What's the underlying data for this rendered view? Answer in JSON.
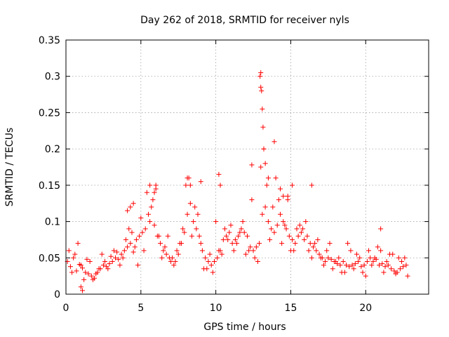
{
  "chart_data": {
    "type": "scatter",
    "title": "Day 262 of 2018, SRMTID for receiver nyls",
    "xlabel": "GPS time / hours",
    "ylabel": "SRMTID / TECUs",
    "xlim": [
      0,
      24.2
    ],
    "ylim": [
      0,
      0.35
    ],
    "xticks": [
      0,
      5,
      10,
      15,
      20
    ],
    "xtick_labels": [
      "0",
      "5",
      "10",
      "15",
      "20"
    ],
    "yticks": [
      0,
      0.05,
      0.1,
      0.15,
      0.2,
      0.25,
      0.3,
      0.35
    ],
    "ytick_labels": [
      "0",
      "0.05",
      "0.1",
      "0.15",
      "0.2",
      "0.25",
      "0.3",
      "0.35"
    ],
    "grid": true,
    "marker": "+",
    "color": "#ff0000",
    "series": [
      {
        "name": "SRMTID",
        "x": [
          0.1,
          0.3,
          0.5,
          0.7,
          0.9,
          1.1,
          1.3,
          1.5,
          1.7,
          1.9,
          2.1,
          2.3,
          2.5,
          2.7,
          2.9,
          3.1,
          3.3,
          3.5,
          3.7,
          3.9,
          4.1,
          4.3,
          4.5,
          4.7,
          4.9,
          5.1,
          5.3,
          5.5,
          5.7,
          5.9,
          6.1,
          6.3,
          6.5,
          6.7,
          6.9,
          7.1,
          7.3,
          7.5,
          7.7,
          7.9,
          8.1,
          8.3,
          8.5,
          8.7,
          8.9,
          9.1,
          9.3,
          9.5,
          9.7,
          9.9,
          10.1,
          10.3,
          10.5,
          10.7,
          10.9,
          11.1,
          11.3,
          11.5,
          11.7,
          11.9,
          12.1,
          12.3,
          12.5,
          12.7,
          12.9,
          13.1,
          13.3,
          13.5,
          13.7,
          13.9,
          14.1,
          14.3,
          14.5,
          14.7,
          14.9,
          15.1,
          15.3,
          15.5,
          15.7,
          15.9,
          16.1,
          16.3,
          16.5,
          16.7,
          16.9,
          17.1,
          17.3,
          17.5,
          17.7,
          17.9,
          18.1,
          18.3,
          18.5,
          18.7,
          18.9,
          19.1,
          19.3,
          19.5,
          19.7,
          19.9,
          20.1,
          20.3,
          20.5,
          20.7,
          20.9,
          21.1,
          21.3,
          21.5,
          21.7,
          21.9,
          22.1,
          22.3,
          22.5,
          22.7,
          0.2,
          0.6,
          1.0,
          1.4,
          1.8,
          2.2,
          2.6,
          3.0,
          3.4,
          3.8,
          4.2,
          4.6,
          5.0,
          5.4,
          5.8,
          6.2,
          6.6,
          7.0,
          7.4,
          7.8,
          8.2,
          8.6,
          9.0,
          9.4,
          9.8,
          10.2,
          10.6,
          11.0,
          11.4,
          11.8,
          12.2,
          12.6,
          13.0,
          13.4,
          13.8,
          14.2,
          14.6,
          15.0,
          15.4,
          15.8,
          16.2,
          16.6,
          17.0,
          17.4,
          17.8,
          18.2,
          18.6,
          19.0,
          19.4,
          19.8,
          20.2,
          20.6,
          21.0,
          21.4,
          21.8,
          22.2,
          22.6,
          0.4,
          0.8,
          1.2,
          1.6,
          2.0,
          2.4,
          2.8,
          3.2,
          3.6,
          4.0,
          4.4,
          4.8,
          5.2,
          5.6,
          6.0,
          6.4,
          6.8,
          7.2,
          7.6,
          8.0,
          8.4,
          8.8,
          9.2,
          9.6,
          10.0,
          10.4,
          10.8,
          11.2,
          11.6,
          12.0,
          12.4,
          12.8,
          13.2,
          13.6,
          14.0,
          14.4,
          14.8,
          15.2,
          15.6,
          16.0,
          16.4,
          16.8,
          17.2,
          17.6,
          18.0,
          18.4,
          18.8,
          19.2,
          19.6,
          20.0,
          20.4,
          20.8,
          21.2,
          21.6,
          22.0,
          22.4,
          22.8,
          12.95,
          13.0,
          13.0,
          13.05,
          13.1,
          13.15,
          13.2,
          13.3,
          13.5,
          13.9,
          14.3,
          12.4,
          8.1,
          8.3,
          9.0,
          10.2,
          10.3,
          5.6,
          5.9,
          6.0,
          4.5,
          16.4,
          21.0,
          4.1,
          4.3,
          1.0,
          1.1,
          15.1,
          14.8,
          14.5
        ],
        "y": [
          0.045,
          0.038,
          0.05,
          0.032,
          0.041,
          0.036,
          0.03,
          0.028,
          0.025,
          0.022,
          0.03,
          0.035,
          0.04,
          0.038,
          0.042,
          0.045,
          0.05,
          0.048,
          0.055,
          0.06,
          0.065,
          0.07,
          0.058,
          0.075,
          0.08,
          0.085,
          0.09,
          0.11,
          0.12,
          0.095,
          0.08,
          0.07,
          0.06,
          0.055,
          0.05,
          0.05,
          0.045,
          0.055,
          0.07,
          0.085,
          0.11,
          0.125,
          0.1,
          0.09,
          0.08,
          0.06,
          0.05,
          0.045,
          0.04,
          0.045,
          0.05,
          0.06,
          0.075,
          0.08,
          0.085,
          0.07,
          0.075,
          0.08,
          0.09,
          0.085,
          0.08,
          0.065,
          0.06,
          0.065,
          0.07,
          0.11,
          0.12,
          0.1,
          0.09,
          0.085,
          0.095,
          0.11,
          0.1,
          0.09,
          0.08,
          0.075,
          0.07,
          0.08,
          0.085,
          0.075,
          0.08,
          0.07,
          0.065,
          0.06,
          0.055,
          0.05,
          0.045,
          0.05,
          0.048,
          0.045,
          0.042,
          0.04,
          0.045,
          0.04,
          0.038,
          0.04,
          0.042,
          0.045,
          0.038,
          0.04,
          0.045,
          0.05,
          0.045,
          0.048,
          0.04,
          0.042,
          0.038,
          0.04,
          0.035,
          0.032,
          0.03,
          0.035,
          0.038,
          0.04,
          0.06,
          0.055,
          0.04,
          0.048,
          0.02,
          0.035,
          0.045,
          0.052,
          0.058,
          0.05,
          0.09,
          0.065,
          0.105,
          0.14,
          0.13,
          0.08,
          0.065,
          0.045,
          0.06,
          0.09,
          0.16,
          0.12,
          0.07,
          0.035,
          0.03,
          0.06,
          0.09,
          0.095,
          0.07,
          0.1,
          0.06,
          0.05,
          0.175,
          0.15,
          0.12,
          0.13,
          0.095,
          0.06,
          0.09,
          0.09,
          0.06,
          0.07,
          0.05,
          0.06,
          0.035,
          0.05,
          0.03,
          0.06,
          0.055,
          0.03,
          0.06,
          0.05,
          0.06,
          0.045,
          0.055,
          0.05,
          0.05,
          0.03,
          0.07,
          0.02,
          0.045,
          0.028,
          0.055,
          0.035,
          0.06,
          0.04,
          0.075,
          0.085,
          0.04,
          0.06,
          0.1,
          0.15,
          0.05,
          0.08,
          0.04,
          0.07,
          0.15,
          0.08,
          0.11,
          0.035,
          0.055,
          0.1,
          0.055,
          0.075,
          0.06,
          0.085,
          0.055,
          0.13,
          0.045,
          0.2,
          0.075,
          0.16,
          0.07,
          0.13,
          0.06,
          0.095,
          0.1,
          0.05,
          0.075,
          0.04,
          0.07,
          0.045,
          0.03,
          0.07,
          0.035,
          0.05,
          0.025,
          0.04,
          0.065,
          0.03,
          0.055,
          0.028,
          0.045,
          0.025,
          0.3,
          0.305,
          0.285,
          0.28,
          0.255,
          0.23,
          0.2,
          0.18,
          0.16,
          0.21,
          0.145,
          0.178,
          0.16,
          0.15,
          0.155,
          0.165,
          0.15,
          0.15,
          0.14,
          0.145,
          0.125,
          0.15,
          0.09,
          0.115,
          0.12,
          0.01,
          0.005,
          0.15,
          0.135,
          0.135
        ]
      }
    ]
  }
}
